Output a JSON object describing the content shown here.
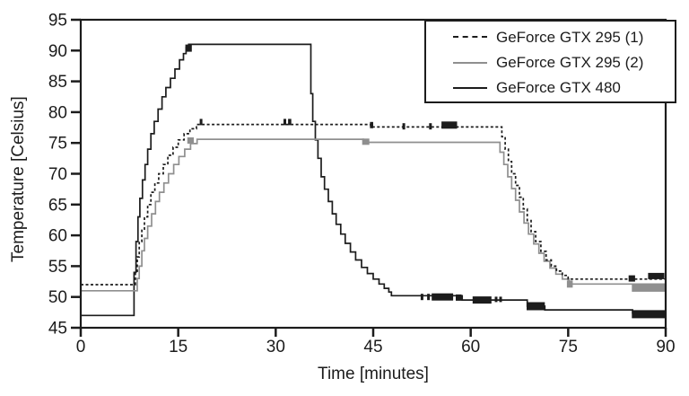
{
  "chart_data": {
    "type": "line",
    "title": "",
    "xlabel": "Time [minutes]",
    "ylabel": "Temperature [Celsius]",
    "xlim": [
      0,
      90
    ],
    "ylim": [
      45,
      95
    ],
    "xticks": [
      0,
      15,
      30,
      45,
      60,
      75,
      90
    ],
    "yticks": [
      45,
      50,
      55,
      60,
      65,
      70,
      75,
      80,
      85,
      90,
      95
    ],
    "grid": false,
    "frame": true,
    "legend_position": "top-right",
    "step_mode": "after",
    "axis_color": "#1c1c1c",
    "series": [
      {
        "name": "GeForce GTX 295 (1)",
        "color": "#1c1c1c",
        "dash": "3,2.5",
        "width": 1.7,
        "points": [
          [
            0,
            52
          ],
          [
            8.4,
            54
          ],
          [
            8.7,
            56.5
          ],
          [
            9.0,
            59
          ],
          [
            9.4,
            61
          ],
          [
            9.8,
            63
          ],
          [
            10.3,
            65
          ],
          [
            10.8,
            67
          ],
          [
            11.4,
            68.5
          ],
          [
            12.0,
            70
          ],
          [
            12.7,
            71.5
          ],
          [
            13.4,
            73
          ],
          [
            14.2,
            74.3
          ],
          [
            15.0,
            75.5
          ],
          [
            15.9,
            76.5
          ],
          [
            16.8,
            77.3
          ],
          [
            17.8,
            78.0
          ],
          [
            44.6,
            77.6
          ],
          [
            64.8,
            76
          ],
          [
            65.3,
            74
          ],
          [
            65.8,
            72
          ],
          [
            66.3,
            70
          ],
          [
            66.9,
            68.1
          ],
          [
            67.5,
            66.2
          ],
          [
            68.1,
            64.3
          ],
          [
            68.7,
            62.4
          ],
          [
            69.3,
            60.6
          ],
          [
            70.0,
            59
          ],
          [
            70.8,
            57.4
          ],
          [
            71.6,
            56
          ],
          [
            72.4,
            55
          ],
          [
            73.2,
            54.2
          ],
          [
            74.1,
            53.5
          ],
          [
            75.0,
            52.9
          ],
          [
            90,
            52.9
          ]
        ],
        "marks": [
          [
            18.3,
            18.7,
            78.4,
            7
          ],
          [
            31.2,
            31.6,
            78.4,
            7
          ],
          [
            31.9,
            32.4,
            78.4,
            7
          ],
          [
            44.5,
            45.0,
            77.9,
            7
          ],
          [
            49.5,
            49.9,
            77.7,
            7
          ],
          [
            53.6,
            54.0,
            77.7,
            7
          ],
          [
            55.5,
            57.9,
            77.9,
            8
          ],
          [
            84.3,
            85.3,
            53.0,
            7
          ],
          [
            87.3,
            89.8,
            53.4,
            7
          ]
        ]
      },
      {
        "name": "GeForce GTX 295 (2)",
        "color": "#8f8f8f",
        "dash": "",
        "width": 1.7,
        "points": [
          [
            0,
            51
          ],
          [
            8.7,
            53
          ],
          [
            9.0,
            55
          ],
          [
            9.4,
            57.5
          ],
          [
            9.8,
            59.5
          ],
          [
            10.3,
            61.5
          ],
          [
            10.9,
            63.5
          ],
          [
            11.5,
            65.5
          ],
          [
            12.1,
            67
          ],
          [
            12.8,
            68.5
          ],
          [
            13.5,
            70
          ],
          [
            14.3,
            71.5
          ],
          [
            15.1,
            72.8
          ],
          [
            16.0,
            74
          ],
          [
            16.9,
            74.9
          ],
          [
            17.9,
            75.6
          ],
          [
            43.5,
            75.1
          ],
          [
            64.5,
            73.5
          ],
          [
            65.1,
            71.5
          ],
          [
            65.7,
            69.5
          ],
          [
            66.3,
            67.6
          ],
          [
            66.9,
            65.7
          ],
          [
            67.5,
            63.8
          ],
          [
            68.2,
            62
          ],
          [
            68.9,
            60.2
          ],
          [
            69.7,
            58.6
          ],
          [
            70.5,
            57.1
          ],
          [
            71.3,
            55.8
          ],
          [
            72.2,
            54.7
          ],
          [
            73.1,
            53.7
          ],
          [
            74.1,
            52.9
          ],
          [
            75.1,
            52.1
          ],
          [
            90,
            51.8
          ]
        ],
        "marks": [
          [
            16.4,
            17.4,
            75.4,
            7
          ],
          [
            43.3,
            44.4,
            75.2,
            7
          ],
          [
            74.8,
            75.7,
            52.1,
            8
          ],
          [
            84.8,
            90,
            51.5,
            9
          ]
        ]
      },
      {
        "name": "GeForce GTX 480",
        "color": "#1c1c1c",
        "dash": "",
        "width": 1.7,
        "points": [
          [
            0,
            47
          ],
          [
            8.2,
            54
          ],
          [
            8.5,
            59
          ],
          [
            8.8,
            63
          ],
          [
            9.1,
            66
          ],
          [
            9.5,
            69
          ],
          [
            9.9,
            71.5
          ],
          [
            10.3,
            74
          ],
          [
            10.8,
            76.5
          ],
          [
            11.3,
            78.5
          ],
          [
            11.9,
            80.5
          ],
          [
            12.5,
            82.5
          ],
          [
            13.1,
            84
          ],
          [
            13.8,
            85.5
          ],
          [
            14.5,
            87
          ],
          [
            15.2,
            88.5
          ],
          [
            15.8,
            89.5
          ],
          [
            16.2,
            90.5
          ],
          [
            16.6,
            91
          ],
          [
            35.4,
            83
          ],
          [
            35.7,
            78.5
          ],
          [
            36.1,
            75.5
          ],
          [
            36.5,
            72.5
          ],
          [
            37.0,
            69.5
          ],
          [
            37.5,
            67.5
          ],
          [
            38.1,
            65.5
          ],
          [
            38.7,
            63.5
          ],
          [
            39.3,
            61.8
          ],
          [
            40.0,
            60.2
          ],
          [
            40.7,
            58.7
          ],
          [
            41.5,
            57.3
          ],
          [
            42.3,
            56
          ],
          [
            43.2,
            54.8
          ],
          [
            44.1,
            53.8
          ],
          [
            45.0,
            52.9
          ],
          [
            45.9,
            52.1
          ],
          [
            46.7,
            51.4
          ],
          [
            47.4,
            50.8
          ],
          [
            47.8,
            50.2
          ],
          [
            58.7,
            49.5
          ],
          [
            68.7,
            48.5
          ],
          [
            71.4,
            47.9
          ],
          [
            84.9,
            47.4
          ],
          [
            90,
            47.4
          ]
        ],
        "marks": [
          [
            16.1,
            17.1,
            90.4,
            8
          ],
          [
            52.3,
            52.6,
            50.0,
            7
          ],
          [
            53.3,
            53.6,
            50.0,
            7
          ],
          [
            54.0,
            57.3,
            50.0,
            8
          ],
          [
            57.7,
            58.6,
            49.9,
            7
          ],
          [
            60.3,
            63.2,
            49.5,
            8
          ],
          [
            63.7,
            64.0,
            49.6,
            6
          ],
          [
            64.4,
            64.8,
            49.6,
            6
          ],
          [
            68.6,
            71.4,
            48.5,
            9
          ],
          [
            84.8,
            90,
            47.2,
            9
          ]
        ]
      }
    ]
  }
}
